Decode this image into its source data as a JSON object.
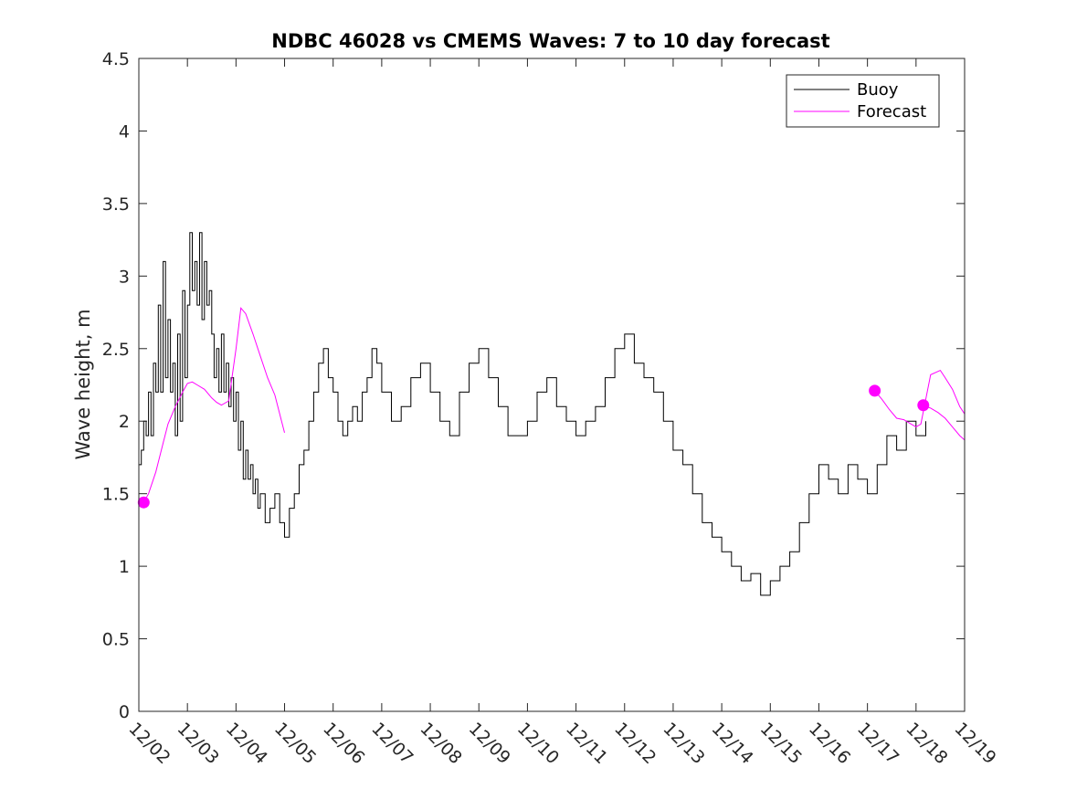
{
  "chart_data": {
    "type": "line",
    "title": "NDBC 46028 vs CMEMS Waves: 7 to 10 day forecast",
    "xlabel": "",
    "ylabel": "Wave height, m",
    "xlim": [
      0,
      17
    ],
    "ylim": [
      0,
      4.5
    ],
    "yticks": [
      0,
      0.5,
      1,
      1.5,
      2,
      2.5,
      3,
      3.5,
      4,
      4.5
    ],
    "ytick_labels": [
      "0",
      "0.5",
      "1",
      "1.5",
      "2",
      "2.5",
      "3",
      "3.5",
      "4",
      "4.5"
    ],
    "xticks": [
      0,
      1,
      2,
      3,
      4,
      5,
      6,
      7,
      8,
      9,
      10,
      11,
      12,
      13,
      14,
      15,
      16,
      17
    ],
    "xtick_labels": [
      "12/02",
      "12/03",
      "12/04",
      "12/05",
      "12/06",
      "12/07",
      "12/08",
      "12/09",
      "12/10",
      "12/11",
      "12/12",
      "12/13",
      "12/14",
      "12/15",
      "12/16",
      "12/17",
      "12/18",
      "12/19"
    ],
    "x_units": "days since 12/02",
    "grid": false,
    "legend": {
      "position": "top-right",
      "entries": [
        "Buoy",
        "Forecast"
      ]
    },
    "series": [
      {
        "name": "Buoy",
        "color": "#000000",
        "style": "line",
        "x": [
          0,
          0.05,
          0.1,
          0.15,
          0.2,
          0.25,
          0.3,
          0.35,
          0.4,
          0.45,
          0.5,
          0.55,
          0.6,
          0.65,
          0.7,
          0.75,
          0.8,
          0.85,
          0.9,
          0.95,
          1.0,
          1.05,
          1.1,
          1.15,
          1.2,
          1.25,
          1.3,
          1.35,
          1.4,
          1.45,
          1.5,
          1.55,
          1.6,
          1.65,
          1.7,
          1.75,
          1.8,
          1.85,
          1.9,
          1.95,
          2.0,
          2.05,
          2.1,
          2.15,
          2.2,
          2.25,
          2.3,
          2.35,
          2.4,
          2.45,
          2.5,
          2.6,
          2.7,
          2.8,
          2.9,
          3.0,
          3.1,
          3.2,
          3.3,
          3.4,
          3.5,
          3.6,
          3.7,
          3.8,
          3.9,
          4.0,
          4.1,
          4.2,
          4.3,
          4.4,
          4.5,
          4.6,
          4.7,
          4.8,
          4.9,
          5.0,
          5.2,
          5.4,
          5.6,
          5.8,
          6.0,
          6.2,
          6.4,
          6.6,
          6.8,
          7.0,
          7.2,
          7.4,
          7.6,
          7.8,
          8.0,
          8.2,
          8.4,
          8.6,
          8.8,
          9.0,
          9.2,
          9.4,
          9.6,
          9.8,
          10.0,
          10.2,
          10.4,
          10.6,
          10.8,
          11.0,
          11.2,
          11.4,
          11.6,
          11.8,
          12.0,
          12.2,
          12.4,
          12.6,
          12.8,
          13.0,
          13.2,
          13.4,
          13.6,
          13.8,
          14.0,
          14.2,
          14.4,
          14.6,
          14.8,
          15.0,
          15.2,
          15.4,
          15.6,
          15.8,
          16.0,
          16.2
        ],
        "y": [
          1.7,
          1.8,
          2.0,
          1.9,
          2.2,
          1.9,
          2.4,
          2.2,
          2.8,
          2.2,
          3.1,
          2.3,
          2.7,
          2.2,
          2.4,
          1.9,
          2.6,
          2.0,
          2.9,
          2.3,
          2.8,
          3.3,
          2.9,
          3.1,
          2.8,
          3.3,
          2.7,
          3.1,
          2.8,
          2.9,
          2.6,
          2.3,
          2.5,
          2.2,
          2.6,
          2.2,
          2.4,
          2.1,
          2.3,
          2.0,
          2.2,
          1.8,
          2.0,
          1.6,
          1.8,
          1.6,
          1.7,
          1.5,
          1.6,
          1.4,
          1.5,
          1.3,
          1.4,
          1.5,
          1.3,
          1.2,
          1.4,
          1.5,
          1.7,
          1.8,
          2.0,
          2.2,
          2.4,
          2.5,
          2.3,
          2.2,
          2.0,
          1.9,
          2.0,
          2.1,
          2.0,
          2.2,
          2.3,
          2.5,
          2.4,
          2.2,
          2.0,
          2.1,
          2.3,
          2.4,
          2.2,
          2.0,
          1.9,
          2.2,
          2.4,
          2.5,
          2.3,
          2.1,
          1.9,
          1.9,
          2.0,
          2.2,
          2.3,
          2.1,
          2.0,
          1.9,
          2.0,
          2.1,
          2.3,
          2.5,
          2.6,
          2.4,
          2.3,
          2.2,
          2.0,
          1.8,
          1.7,
          1.5,
          1.3,
          1.2,
          1.1,
          1.0,
          0.9,
          0.95,
          0.8,
          0.9,
          1.0,
          1.1,
          1.3,
          1.5,
          1.7,
          1.6,
          1.5,
          1.7,
          1.6,
          1.5,
          1.7,
          1.9,
          1.8,
          2.0,
          1.9,
          2.0
        ]
      },
      {
        "name": "Forecast",
        "color": "#ff00ff",
        "style": "line",
        "segments": [
          {
            "x": [
              0.1,
              0.2,
              0.35,
              0.5,
              0.6,
              0.75,
              0.9,
              1.0,
              1.1,
              1.2,
              1.35,
              1.5,
              1.6,
              1.7,
              1.85,
              2.0,
              2.1,
              2.2,
              2.35,
              2.5,
              2.65,
              2.8,
              3.0
            ],
            "y": [
              1.44,
              1.5,
              1.65,
              1.85,
              1.98,
              2.1,
              2.2,
              2.26,
              2.27,
              2.25,
              2.22,
              2.16,
              2.13,
              2.11,
              2.14,
              2.5,
              2.78,
              2.74,
              2.6,
              2.45,
              2.3,
              2.18,
              1.92
            ]
          },
          {
            "x": [
              15.15,
              15.3,
              15.45,
              15.6,
              15.75,
              15.9,
              16.0,
              16.1,
              16.3,
              16.5,
              16.6,
              16.75,
              16.9,
              17.0
            ],
            "y": [
              2.21,
              2.15,
              2.08,
              2.02,
              2.01,
              1.98,
              1.96,
              1.98,
              2.32,
              2.35,
              2.3,
              2.22,
              2.1,
              2.05
            ]
          },
          {
            "x": [
              16.15,
              16.3,
              16.45,
              16.6,
              16.75,
              16.9,
              17.0
            ],
            "y": [
              2.11,
              2.09,
              2.06,
              2.02,
              1.96,
              1.9,
              1.87
            ]
          }
        ],
        "markers": {
          "x": [
            0.1,
            15.15,
            16.15
          ],
          "y": [
            1.44,
            2.21,
            2.11
          ]
        }
      }
    ]
  }
}
